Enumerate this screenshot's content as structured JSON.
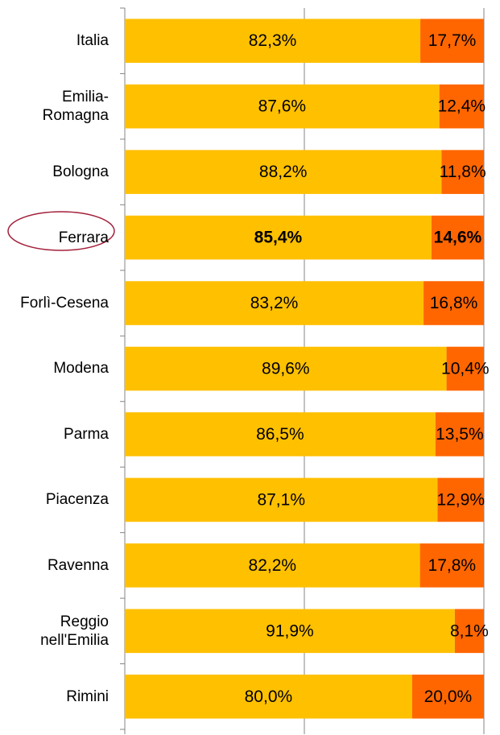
{
  "chart_data": {
    "type": "stacked_barh",
    "categories": [
      "Italia",
      "Emilia-Romagna",
      "Bologna",
      "Ferrara",
      "Forlì-Cesena",
      "Modena",
      "Parma",
      "Piacenza",
      "Ravenna",
      "Reggio nell'Emilia",
      "Rimini"
    ],
    "series": [
      {
        "color": "#FFC000",
        "values": [
          82.3,
          87.6,
          88.2,
          85.4,
          83.2,
          89.6,
          86.5,
          87.1,
          82.2,
          91.9,
          80.0
        ],
        "value_labels": [
          "82,3%",
          "87,6%",
          "88,2%",
          "85,4%",
          "83,2%",
          "89,6%",
          "86,5%",
          "87,1%",
          "82,2%",
          "91,9%",
          "80,0%"
        ]
      },
      {
        "color": "#FF6600",
        "values": [
          17.7,
          12.4,
          11.8,
          14.6,
          16.8,
          10.4,
          13.5,
          12.9,
          17.8,
          8.1,
          20.0
        ],
        "value_labels": [
          "17,7%",
          "12,4%",
          "11,8%",
          "14,6%",
          "16,8%",
          "10,4%",
          "13,5%",
          "12,9%",
          "17,8%",
          "8,1%",
          "20,0%"
        ]
      }
    ],
    "xlim": [
      0,
      100
    ],
    "xticks": [
      0,
      50,
      100
    ],
    "grid": true,
    "highlight_index": 3
  }
}
